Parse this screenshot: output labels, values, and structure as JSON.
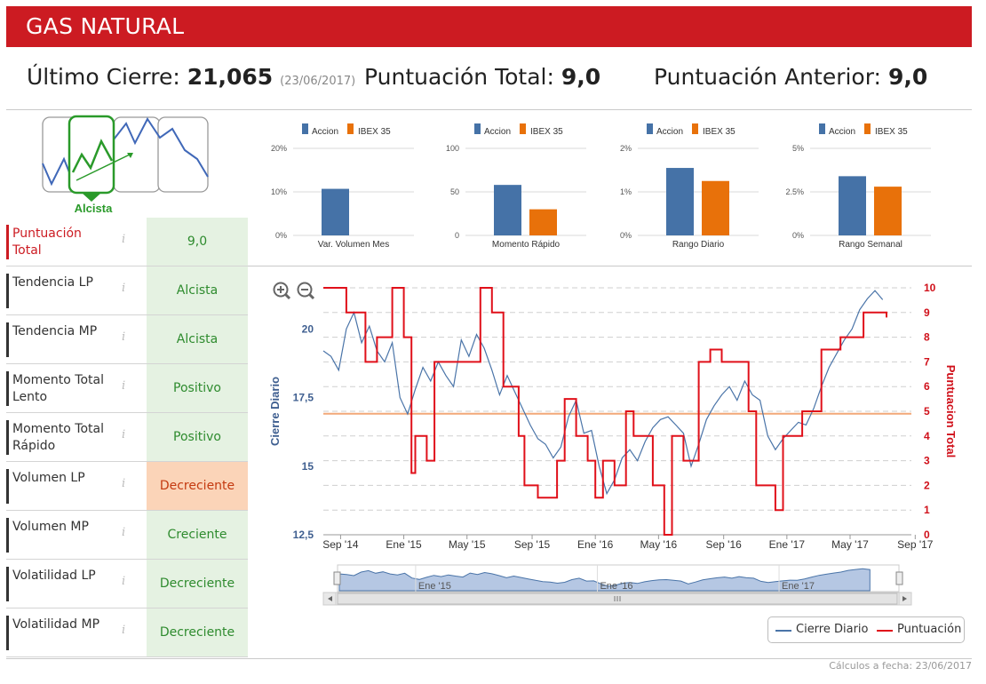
{
  "header": {
    "title": "GAS NATURAL"
  },
  "summary": {
    "last_close_label": "Último Cierre:",
    "last_close_value": "21,065",
    "last_close_date": "(23/06/2017)",
    "total_score_label": "Puntuación Total:",
    "total_score_value": "9,0",
    "previous_score_label": "Puntuación Anterior:",
    "previous_score_value": "9,0"
  },
  "trend_card": {
    "label": "Alcista"
  },
  "indicators": [
    {
      "label": "Puntuación Total",
      "info": "i",
      "value": "9,0",
      "status": "positive",
      "active": true
    },
    {
      "label": "Tendencia LP",
      "info": "i",
      "value": "Alcista",
      "status": "positive"
    },
    {
      "label": "Tendencia MP",
      "info": "i",
      "value": "Alcista",
      "status": "positive"
    },
    {
      "label": "Momento Total Lento",
      "info": "i",
      "value": "Positivo",
      "status": "positive"
    },
    {
      "label": "Momento Total Rápido",
      "info": "i",
      "value": "Positivo",
      "status": "positive"
    },
    {
      "label": "Volumen LP",
      "info": "i",
      "value": "Decreciente",
      "status": "negative"
    },
    {
      "label": "Volumen MP",
      "info": "i",
      "value": "Creciente",
      "status": "positive"
    },
    {
      "label": "Volatilidad LP",
      "info": "i",
      "value": "Decreciente",
      "status": "positive"
    },
    {
      "label": "Volatilidad MP",
      "info": "i",
      "value": "Decreciente",
      "status": "positive"
    }
  ],
  "colors": {
    "brand_red": "#cc1b22",
    "accion_blue": "#4572a7",
    "ibex_orange": "#e8710a",
    "positive_bg": "#e5f2e2",
    "negative_bg": "#fbd4b8"
  },
  "chart_data": [
    {
      "type": "bar",
      "title": "Var. Volumen Mes",
      "legend": [
        "Accion",
        "IBEX 35"
      ],
      "series": [
        {
          "name": "Accion",
          "values": [
            10.7
          ]
        },
        {
          "name": "IBEX 35",
          "values": [
            0
          ]
        }
      ],
      "yticks": [
        "20%",
        "10%",
        "0%"
      ],
      "ylim": [
        0,
        20
      ]
    },
    {
      "type": "bar",
      "title": "Momento Rápido",
      "legend": [
        "Accion",
        "IBEX 35"
      ],
      "series": [
        {
          "name": "Accion",
          "values": [
            58
          ]
        },
        {
          "name": "IBEX 35",
          "values": [
            30
          ]
        }
      ],
      "yticks": [
        "100",
        "50",
        "0"
      ],
      "ylim": [
        0,
        100
      ]
    },
    {
      "type": "bar",
      "title": "Rango Diario",
      "legend": [
        "Accion",
        "IBEX 35"
      ],
      "series": [
        {
          "name": "Accion",
          "values": [
            1.55
          ]
        },
        {
          "name": "IBEX 35",
          "values": [
            1.25
          ]
        }
      ],
      "yticks": [
        "2%",
        "1%",
        "0%"
      ],
      "ylim": [
        0,
        2
      ]
    },
    {
      "type": "bar",
      "title": "Rango Semanal",
      "legend": [
        "Accion",
        "IBEX 35"
      ],
      "series": [
        {
          "name": "Accion",
          "values": [
            3.4
          ]
        },
        {
          "name": "IBEX 35",
          "values": [
            2.8
          ]
        }
      ],
      "yticks": [
        "5%",
        "2.5%",
        "0%"
      ],
      "ylim": [
        0,
        5
      ]
    },
    {
      "type": "line",
      "title": "",
      "xlabel": "",
      "ylabel": "Cierre Diario",
      "ylabel_right": "Puntuacion Total",
      "ylim": [
        12.5,
        21.5
      ],
      "ylim_right": [
        0,
        10
      ],
      "x_range": [
        2014.58,
        2017.65
      ],
      "yticks": [
        "20",
        "17,5",
        "15",
        "12,5"
      ],
      "yticks_right": [
        "10",
        "9",
        "8",
        "7",
        "6",
        "5",
        "4",
        "3",
        "2",
        "1",
        "0"
      ],
      "xticks": [
        "Sep '14",
        "Ene '15",
        "May '15",
        "Sep '15",
        "Ene '16",
        "May '16",
        "Sep '16",
        "Ene '17",
        "May '17",
        "Sep '17"
      ],
      "xtick_values": [
        2014.67,
        2015.0,
        2015.33,
        2015.67,
        2016.0,
        2016.33,
        2016.67,
        2017.0,
        2017.33,
        2017.67
      ],
      "reference_line": {
        "value": 4.9,
        "axis": "right"
      },
      "navigator_labels": [
        "Ene '15",
        "Ene '16",
        "Ene '17"
      ],
      "navigator_label_values": [
        2015.0,
        2016.0,
        2017.0
      ],
      "legend": [
        "Cierre Diario",
        "Puntuación"
      ],
      "series": [
        {
          "name": "Cierre Diario",
          "x": [
            2014.58,
            2014.62,
            2014.66,
            2014.7,
            2014.74,
            2014.78,
            2014.82,
            2014.86,
            2014.9,
            2014.94,
            2014.98,
            2015.02,
            2015.06,
            2015.1,
            2015.14,
            2015.18,
            2015.22,
            2015.26,
            2015.3,
            2015.34,
            2015.38,
            2015.42,
            2015.46,
            2015.5,
            2015.54,
            2015.58,
            2015.62,
            2015.66,
            2015.7,
            2015.74,
            2015.78,
            2015.82,
            2015.86,
            2015.9,
            2015.94,
            2015.98,
            2016.02,
            2016.06,
            2016.1,
            2016.14,
            2016.18,
            2016.22,
            2016.26,
            2016.3,
            2016.34,
            2016.38,
            2016.42,
            2016.46,
            2016.5,
            2016.54,
            2016.58,
            2016.62,
            2016.66,
            2016.7,
            2016.74,
            2016.78,
            2016.82,
            2016.86,
            2016.9,
            2016.94,
            2016.98,
            2017.02,
            2017.06,
            2017.1,
            2017.14,
            2017.18,
            2017.22,
            2017.26,
            2017.3,
            2017.34,
            2017.38,
            2017.42,
            2017.46,
            2017.5
          ],
          "values": [
            19.2,
            19.0,
            18.5,
            20.0,
            20.6,
            19.5,
            20.1,
            19.2,
            18.8,
            19.5,
            17.5,
            16.9,
            17.8,
            18.6,
            18.1,
            18.8,
            18.3,
            17.9,
            19.6,
            19.0,
            19.8,
            19.3,
            18.5,
            17.6,
            18.3,
            17.7,
            17.1,
            16.5,
            16.0,
            15.8,
            15.3,
            15.7,
            16.8,
            17.4,
            16.2,
            16.3,
            15.0,
            14.0,
            14.5,
            15.3,
            15.6,
            15.2,
            15.9,
            16.4,
            16.7,
            16.8,
            16.5,
            16.2,
            15.0,
            15.8,
            16.7,
            17.2,
            17.6,
            17.9,
            17.4,
            18.1,
            17.6,
            17.4,
            16.1,
            15.6,
            16.0,
            16.3,
            16.6,
            16.5,
            17.1,
            17.9,
            18.6,
            19.1,
            19.6,
            20.0,
            20.7,
            21.1,
            21.4,
            21.065
          ]
        },
        {
          "name": "Puntuación",
          "x": [
            2014.58,
            2014.7,
            2014.8,
            2014.86,
            2014.94,
            2015.0,
            2015.04,
            2015.06,
            2015.12,
            2015.16,
            2015.3,
            2015.4,
            2015.46,
            2015.52,
            2015.6,
            2015.63,
            2015.7,
            2015.8,
            2015.84,
            2015.9,
            2015.96,
            2016.0,
            2016.04,
            2016.1,
            2016.16,
            2016.2,
            2016.3,
            2016.36,
            2016.4,
            2016.46,
            2016.54,
            2016.6,
            2016.66,
            2016.8,
            2016.84,
            2016.94,
            2016.98,
            2017.08,
            2017.18,
            2017.28,
            2017.4,
            2017.48,
            2017.52
          ],
          "values": [
            10,
            9,
            7,
            8,
            10,
            8,
            2.5,
            4,
            3,
            7,
            7,
            10,
            9,
            6,
            4,
            2,
            1.5,
            3,
            5.5,
            4,
            3,
            1.5,
            3,
            2,
            5,
            4,
            2,
            0,
            4,
            3,
            7,
            7.5,
            7,
            5,
            2,
            1,
            4,
            5,
            7.5,
            8,
            9,
            9,
            8.8
          ]
        }
      ]
    }
  ],
  "footer": {
    "calc_date": "Cálculos a fecha: 23/06/2017"
  }
}
